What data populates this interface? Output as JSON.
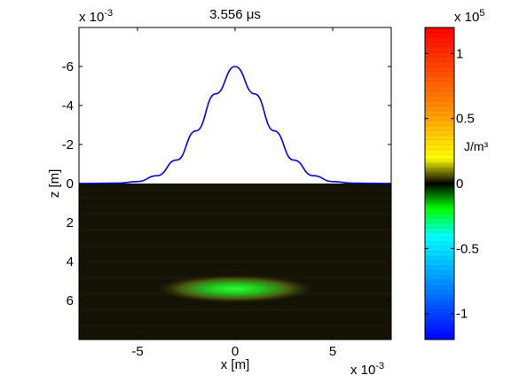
{
  "chart_data": {
    "type": "heatmap",
    "title": "3.556 μs",
    "xlabel": "x [m]",
    "ylabel": "z [m]",
    "x_multiplier_label": "x 10",
    "x_multiplier_exp": "-3",
    "y_multiplier_label": "x 10",
    "y_multiplier_exp": "-3",
    "xlim": [
      -8,
      8
    ],
    "ylim": [
      -8,
      8
    ],
    "y_reversed": true,
    "x_ticks": [
      -5,
      0,
      5
    ],
    "x_tick_labels": [
      "-5",
      "0",
      "5"
    ],
    "y_ticks": [
      -6,
      -4,
      -2,
      0,
      2,
      4,
      6
    ],
    "y_tick_labels": [
      "-6",
      "-4",
      "-2",
      "0",
      "2",
      "4",
      "6"
    ],
    "grid": false,
    "surface_profile": {
      "color": "#0000cc",
      "x": [
        -8,
        -6,
        -5,
        -4,
        -3,
        -2,
        -1,
        0,
        1,
        2,
        3,
        4,
        5,
        6,
        8
      ],
      "z": [
        0,
        -0.02,
        -0.1,
        -0.4,
        -1.2,
        -2.7,
        -4.6,
        -6.0,
        -4.6,
        -2.7,
        -1.2,
        -0.4,
        -0.1,
        -0.02,
        0
      ]
    },
    "field_region": {
      "z_range": [
        0,
        8
      ],
      "background_value": 0.0,
      "energy_band": {
        "center_x": 0,
        "center_z": 5.4,
        "halfwidth_x": 4.0,
        "thickness_z": 0.35,
        "peak_value": -0.5,
        "shape": "upward arc"
      }
    },
    "colorbar": {
      "label": "J/m³",
      "multiplier_label": "x 10",
      "multiplier_exp": "5",
      "range": [
        -1.2,
        1.2
      ],
      "ticks": [
        -1,
        -0.5,
        0,
        0.5,
        1
      ],
      "tick_labels": [
        "-1",
        "-0.5",
        "0",
        "0.5",
        "1"
      ],
      "colormap": [
        "#0000ff",
        "#0088ff",
        "#00ffff",
        "#00ff00",
        "#000000",
        "#ffff00",
        "#ff8800",
        "#ff0000"
      ]
    }
  }
}
